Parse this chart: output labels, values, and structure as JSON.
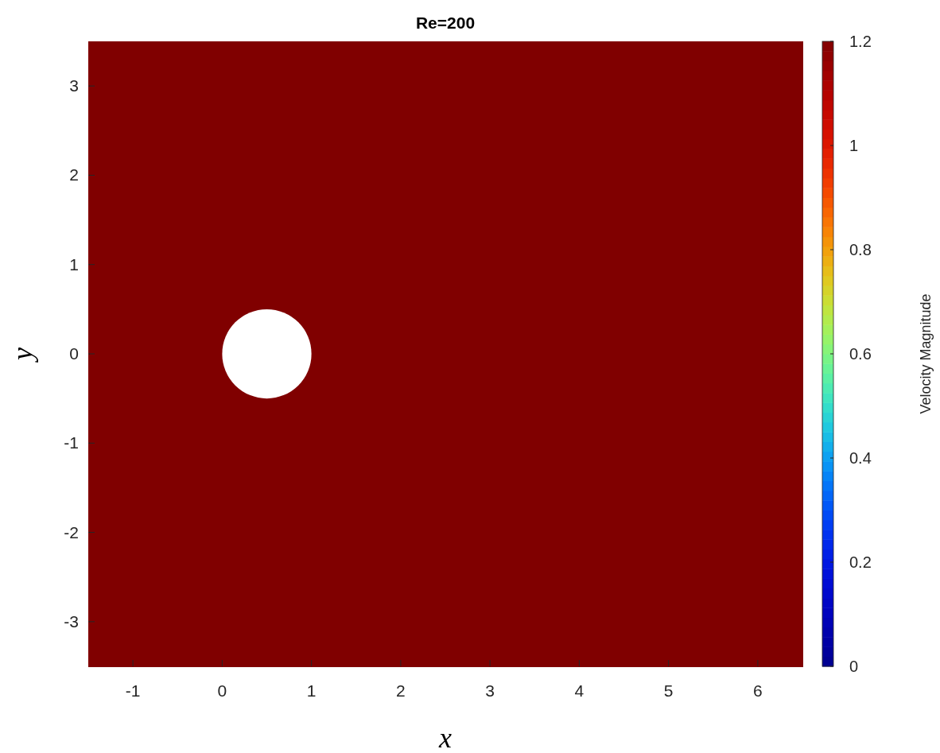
{
  "chart_data": {
    "type": "heatmap",
    "title": "Re=200",
    "xlabel": "x",
    "ylabel": "y",
    "clabel": "Velocity Magnitude",
    "categories": [
      "-1",
      "0",
      "1",
      "2",
      "3",
      "4",
      "5",
      "6"
    ],
    "y_categories": [
      "3",
      "2",
      "1",
      "0",
      "-1",
      "-2",
      "-3"
    ],
    "cells": [
      [
        1.2,
        1.2,
        1.2,
        1.2,
        1.2,
        1.2,
        1.2,
        1.2
      ],
      [
        1.2,
        1.2,
        1.2,
        1.2,
        1.2,
        1.2,
        1.2,
        1.2
      ],
      [
        1.2,
        1.2,
        1.2,
        1.2,
        1.2,
        1.2,
        1.2,
        1.2
      ],
      [
        1.2,
        1.2,
        1.2,
        1.2,
        1.2,
        1.2,
        1.2,
        1.2
      ],
      [
        1.2,
        1.2,
        1.2,
        1.2,
        1.2,
        1.2,
        1.2,
        1.2
      ],
      [
        1.2,
        1.2,
        1.2,
        1.2,
        1.2,
        1.2,
        1.2,
        1.2
      ],
      [
        1.2,
        1.2,
        1.2,
        1.2,
        1.2,
        1.2,
        1.2,
        1.2
      ]
    ],
    "clim": [
      0,
      1.2
    ],
    "cticks": [
      0,
      0.2,
      0.4,
      0.6,
      0.8,
      1,
      1.2
    ]
  }
}
